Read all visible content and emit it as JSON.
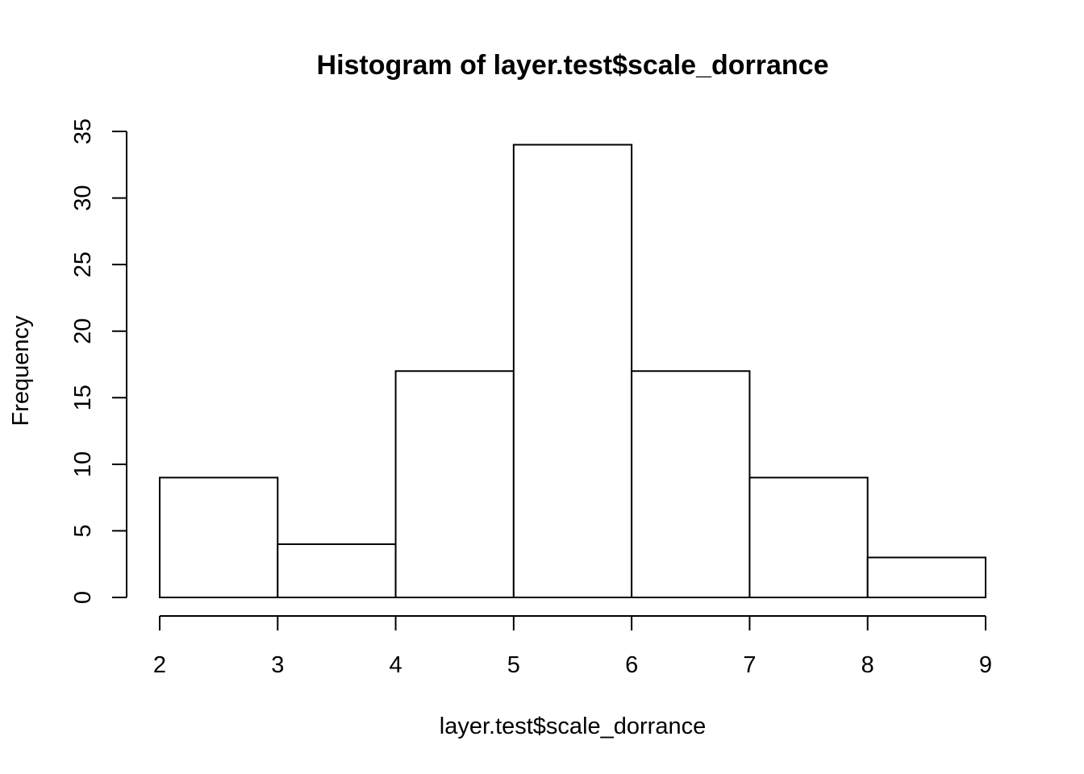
{
  "chart_data": {
    "type": "bar",
    "subtype": "histogram",
    "title": "Histogram of layer.test$scale_dorrance",
    "xlabel": "layer.test$scale_dorrance",
    "ylabel": "Frequency",
    "bins": [
      {
        "from": 2,
        "to": 3,
        "count": 9
      },
      {
        "from": 3,
        "to": 4,
        "count": 4
      },
      {
        "from": 4,
        "to": 5,
        "count": 17
      },
      {
        "from": 5,
        "to": 6,
        "count": 34
      },
      {
        "from": 6,
        "to": 7,
        "count": 17
      },
      {
        "from": 7,
        "to": 8,
        "count": 9
      },
      {
        "from": 8,
        "to": 9,
        "count": 3
      }
    ],
    "xlim": [
      2,
      9
    ],
    "ylim": [
      0,
      35
    ],
    "x_ticks": [
      2,
      3,
      4,
      5,
      6,
      7,
      8,
      9
    ],
    "y_ticks": [
      0,
      5,
      10,
      15,
      20,
      25,
      30,
      35
    ],
    "bar_fill": "#ffffff",
    "bar_stroke": "#000000",
    "grid": false,
    "legend": "none"
  }
}
